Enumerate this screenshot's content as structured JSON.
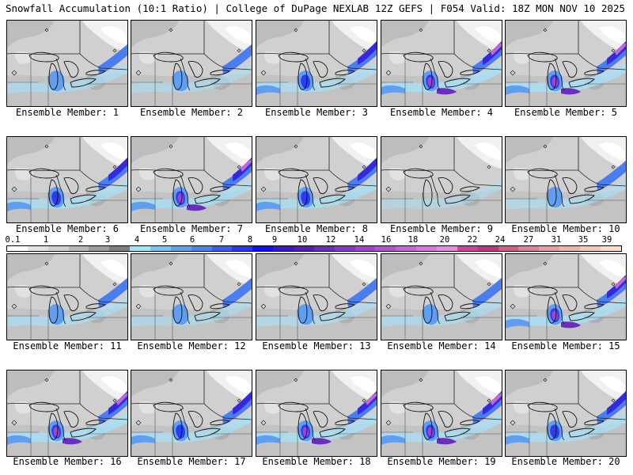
{
  "header": {
    "title": "Snowfall Accumulation (10:1 Ratio) | College of DuPage NEXLAB",
    "run_info": "12Z GEFS | F054 Valid: 18Z MON NOV 10 2025"
  },
  "colorbar": {
    "labels": [
      "0.1",
      "1",
      "2",
      "3",
      "4",
      "5",
      "6",
      "7",
      "8",
      "9",
      "10",
      "12",
      "14",
      "16",
      "18",
      "20",
      "22",
      "24",
      "27",
      "31",
      "35",
      "39"
    ],
    "colors": [
      "#ffffff",
      "#e3e3e3",
      "#cfcfcf",
      "#b9b9b9",
      "#9d9d9d",
      "#7e7e7e",
      "#9ee9f5",
      "#73c8f0",
      "#5aa6ee",
      "#4a83ec",
      "#3a5ff0",
      "#2937f2",
      "#1010f2",
      "#3a18c8",
      "#5220b4",
      "#6c2cbc",
      "#8638c6",
      "#a044d0",
      "#b454d2",
      "#c665d6",
      "#d878dc",
      "#e48ce2",
      "#d1429a",
      "#c0367e",
      "#cd5e86",
      "#db8294",
      "#e59ea2",
      "#ecb4ae",
      "#f2c8bc",
      "#f8dccf"
    ]
  },
  "members": [
    {
      "label": "Ensemble Member: 1",
      "intensity": 0.55
    },
    {
      "label": "Ensemble Member: 2",
      "intensity": 0.35
    },
    {
      "label": "Ensemble Member: 3",
      "intensity": 0.65
    },
    {
      "label": "Ensemble Member: 4",
      "intensity": 0.95
    },
    {
      "label": "Ensemble Member: 5",
      "intensity": 0.9
    },
    {
      "label": "Ensemble Member: 6",
      "intensity": 0.7
    },
    {
      "label": "Ensemble Member: 7",
      "intensity": 0.85
    },
    {
      "label": "Ensemble Member: 8",
      "intensity": 0.75
    },
    {
      "label": "Ensemble Member: 9",
      "intensity": 0.15
    },
    {
      "label": "Ensemble Member: 10",
      "intensity": 0.45
    },
    {
      "label": "Ensemble Member: 11",
      "intensity": 0.5
    },
    {
      "label": "Ensemble Member: 12",
      "intensity": 0.35
    },
    {
      "label": "Ensemble Member: 13",
      "intensity": 0.45
    },
    {
      "label": "Ensemble Member: 14",
      "intensity": 0.55
    },
    {
      "label": "Ensemble Member: 15",
      "intensity": 0.9
    },
    {
      "label": "Ensemble Member: 16",
      "intensity": 1.0
    },
    {
      "label": "Ensemble Member: 17",
      "intensity": 0.75
    },
    {
      "label": "Ensemble Member: 18",
      "intensity": 0.9
    },
    {
      "label": "Ensemble Member: 19",
      "intensity": 0.85
    },
    {
      "label": "Ensemble Member: 20",
      "intensity": 0.8
    }
  ]
}
